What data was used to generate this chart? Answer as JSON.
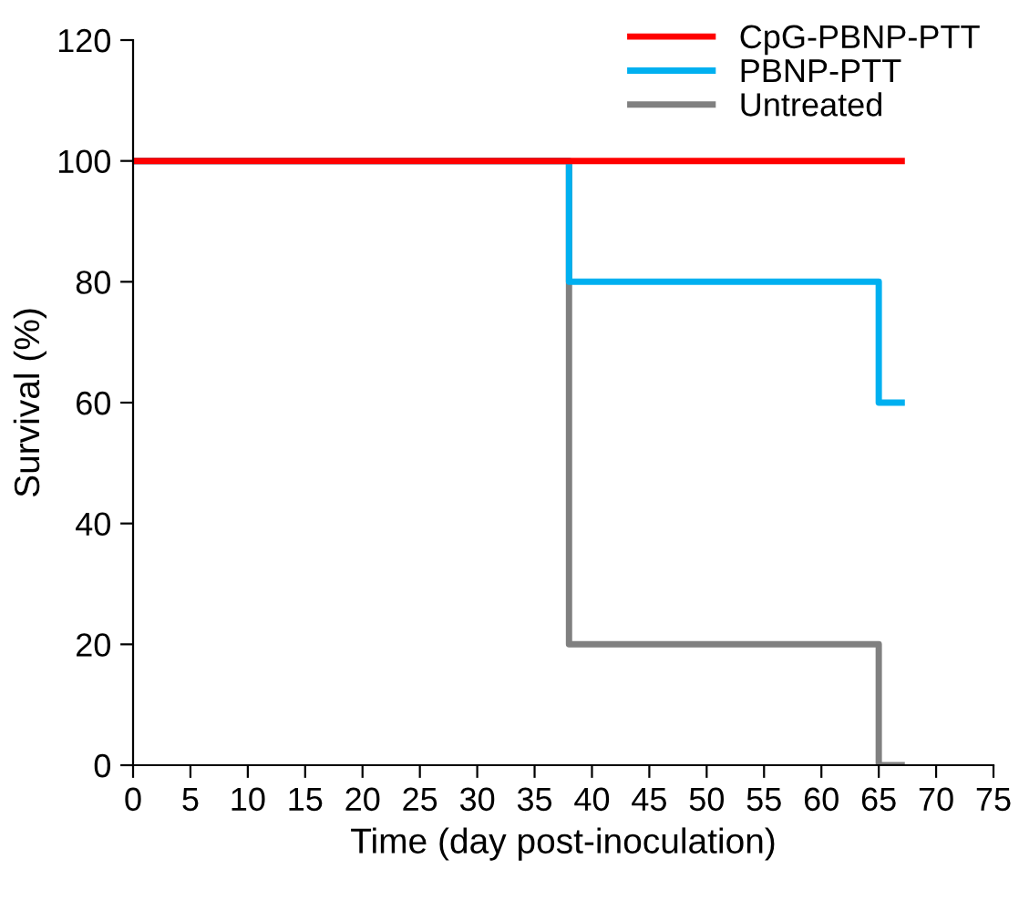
{
  "chart_data": {
    "type": "step",
    "xlabel": "Time (day post-inoculation)",
    "ylabel": "Survival (%)",
    "series": [
      {
        "name": "CpG-PBNP-PTT",
        "color": "#ff0000",
        "x": [
          0,
          38,
          65,
          67
        ],
        "values": [
          100,
          100,
          100,
          100
        ]
      },
      {
        "name": "PBNP-PTT",
        "color": "#00b0f0",
        "x": [
          0,
          38,
          65,
          67
        ],
        "values": [
          100,
          80,
          60,
          60
        ]
      },
      {
        "name": "Untreated",
        "color": "#808080",
        "x": [
          0,
          38,
          65,
          67
        ],
        "values": [
          100,
          20,
          0,
          0
        ]
      }
    ],
    "xlim": [
      0,
      75
    ],
    "xticks": [
      0,
      5,
      10,
      15,
      20,
      25,
      30,
      35,
      40,
      45,
      50,
      55,
      60,
      65,
      70,
      75
    ],
    "ylim": [
      0,
      120
    ],
    "yticks": [
      0,
      20,
      40,
      60,
      80,
      100,
      120
    ],
    "grid": false,
    "legend": "top right",
    "line_style": "solid",
    "marker": "none"
  }
}
